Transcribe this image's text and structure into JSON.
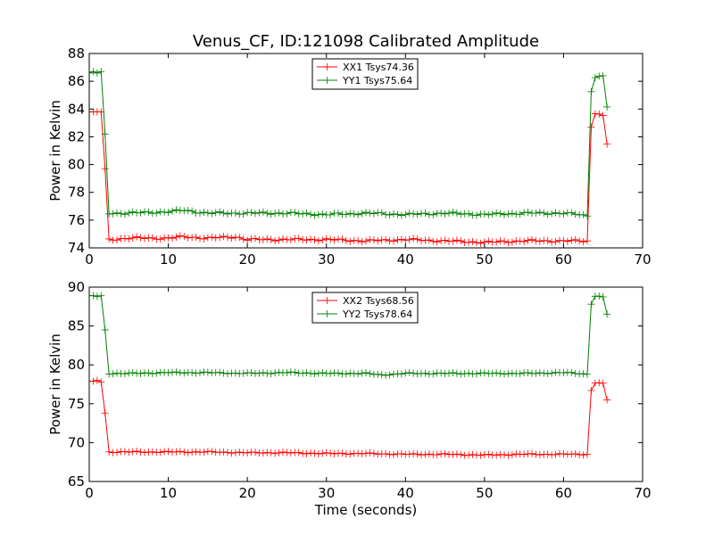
{
  "chart_data": [
    {
      "type": "line",
      "title": "Venus_CF, ID:121098 Calibrated Amplitude",
      "xlabel": "",
      "ylabel": "Power in Kelvin",
      "xlim": [
        0,
        70
      ],
      "ylim": [
        74,
        88
      ],
      "xticks": [
        0,
        10,
        20,
        30,
        40,
        50,
        60,
        70
      ],
      "yticks": [
        74,
        76,
        78,
        80,
        82,
        84,
        86,
        88
      ],
      "legend_position": "top-center",
      "series": [
        {
          "name": "XX1 Tsys74.36",
          "color": "#ff0000",
          "x": [
            0,
            0.5,
            1.0,
            1.5,
            2.0,
            2.5,
            5,
            10,
            12,
            15,
            18.5,
            20,
            25,
            30,
            35,
            40,
            45,
            50,
            55,
            60,
            62,
            63.0,
            63.3,
            63.7,
            64.2,
            64.7,
            65.2,
            65.6
          ],
          "y": [
            83.8,
            83.8,
            83.8,
            83.8,
            79.7,
            74.6,
            74.7,
            74.7,
            74.8,
            74.7,
            74.8,
            74.6,
            74.6,
            74.6,
            74.5,
            74.6,
            74.5,
            74.4,
            74.5,
            74.5,
            74.5,
            74.5,
            81.8,
            83.6,
            83.7,
            83.6,
            83.5,
            80.8
          ]
        },
        {
          "name": "YY1 Tsys75.64",
          "color": "#008000",
          "x": [
            0,
            0.5,
            1.0,
            1.5,
            2.0,
            2.5,
            5,
            10,
            12,
            15,
            20,
            25,
            30,
            35,
            40,
            45,
            50,
            55,
            60,
            62,
            63.0,
            63.3,
            63.7,
            64.2,
            64.7,
            65.2,
            65.6
          ],
          "y": [
            86.6,
            86.7,
            86.6,
            86.7,
            82.2,
            76.5,
            76.5,
            76.6,
            76.7,
            76.5,
            76.5,
            76.5,
            76.4,
            76.5,
            76.4,
            76.5,
            76.4,
            76.5,
            76.5,
            76.4,
            76.3,
            84.3,
            86.2,
            86.3,
            86.4,
            86.4,
            83.4
          ]
        }
      ]
    },
    {
      "type": "line",
      "title": "",
      "xlabel": "Time (seconds)",
      "ylabel": "Power in Kelvin",
      "xlim": [
        0,
        70
      ],
      "ylim": [
        65,
        90
      ],
      "xticks": [
        0,
        10,
        20,
        30,
        40,
        50,
        60,
        70
      ],
      "yticks": [
        65,
        70,
        75,
        80,
        85,
        90
      ],
      "legend_position": "top-center",
      "series": [
        {
          "name": "XX2 Tsys68.56",
          "color": "#ff0000",
          "x": [
            0,
            0.5,
            1.0,
            1.5,
            2.0,
            2.5,
            5,
            10,
            15,
            20,
            25,
            30,
            35,
            40,
            45,
            50,
            55,
            60,
            62,
            63.0,
            63.3,
            63.7,
            64.2,
            64.7,
            65.2,
            65.6
          ],
          "y": [
            77.9,
            77.9,
            78.0,
            77.8,
            73.8,
            68.8,
            68.8,
            68.8,
            68.8,
            68.7,
            68.7,
            68.6,
            68.6,
            68.5,
            68.5,
            68.4,
            68.5,
            68.5,
            68.5,
            68.5,
            75.8,
            77.6,
            77.7,
            77.7,
            77.6,
            74.8
          ]
        },
        {
          "name": "YY2 Tsys78.64",
          "color": "#008000",
          "x": [
            0,
            0.5,
            1.0,
            1.5,
            2.0,
            2.5,
            5,
            10,
            15,
            20,
            25,
            30,
            35,
            37,
            40,
            45,
            50,
            55,
            60,
            62,
            63.0,
            63.3,
            63.7,
            64.2,
            64.7,
            65.2,
            65.6
          ],
          "y": [
            88.9,
            88.9,
            88.8,
            88.9,
            84.5,
            78.9,
            78.9,
            79.0,
            79.0,
            78.9,
            79.0,
            78.9,
            78.9,
            78.7,
            78.9,
            78.9,
            78.9,
            78.9,
            79.0,
            78.9,
            78.8,
            86.9,
            88.7,
            88.9,
            88.8,
            88.7,
            85.8
          ]
        }
      ]
    }
  ]
}
